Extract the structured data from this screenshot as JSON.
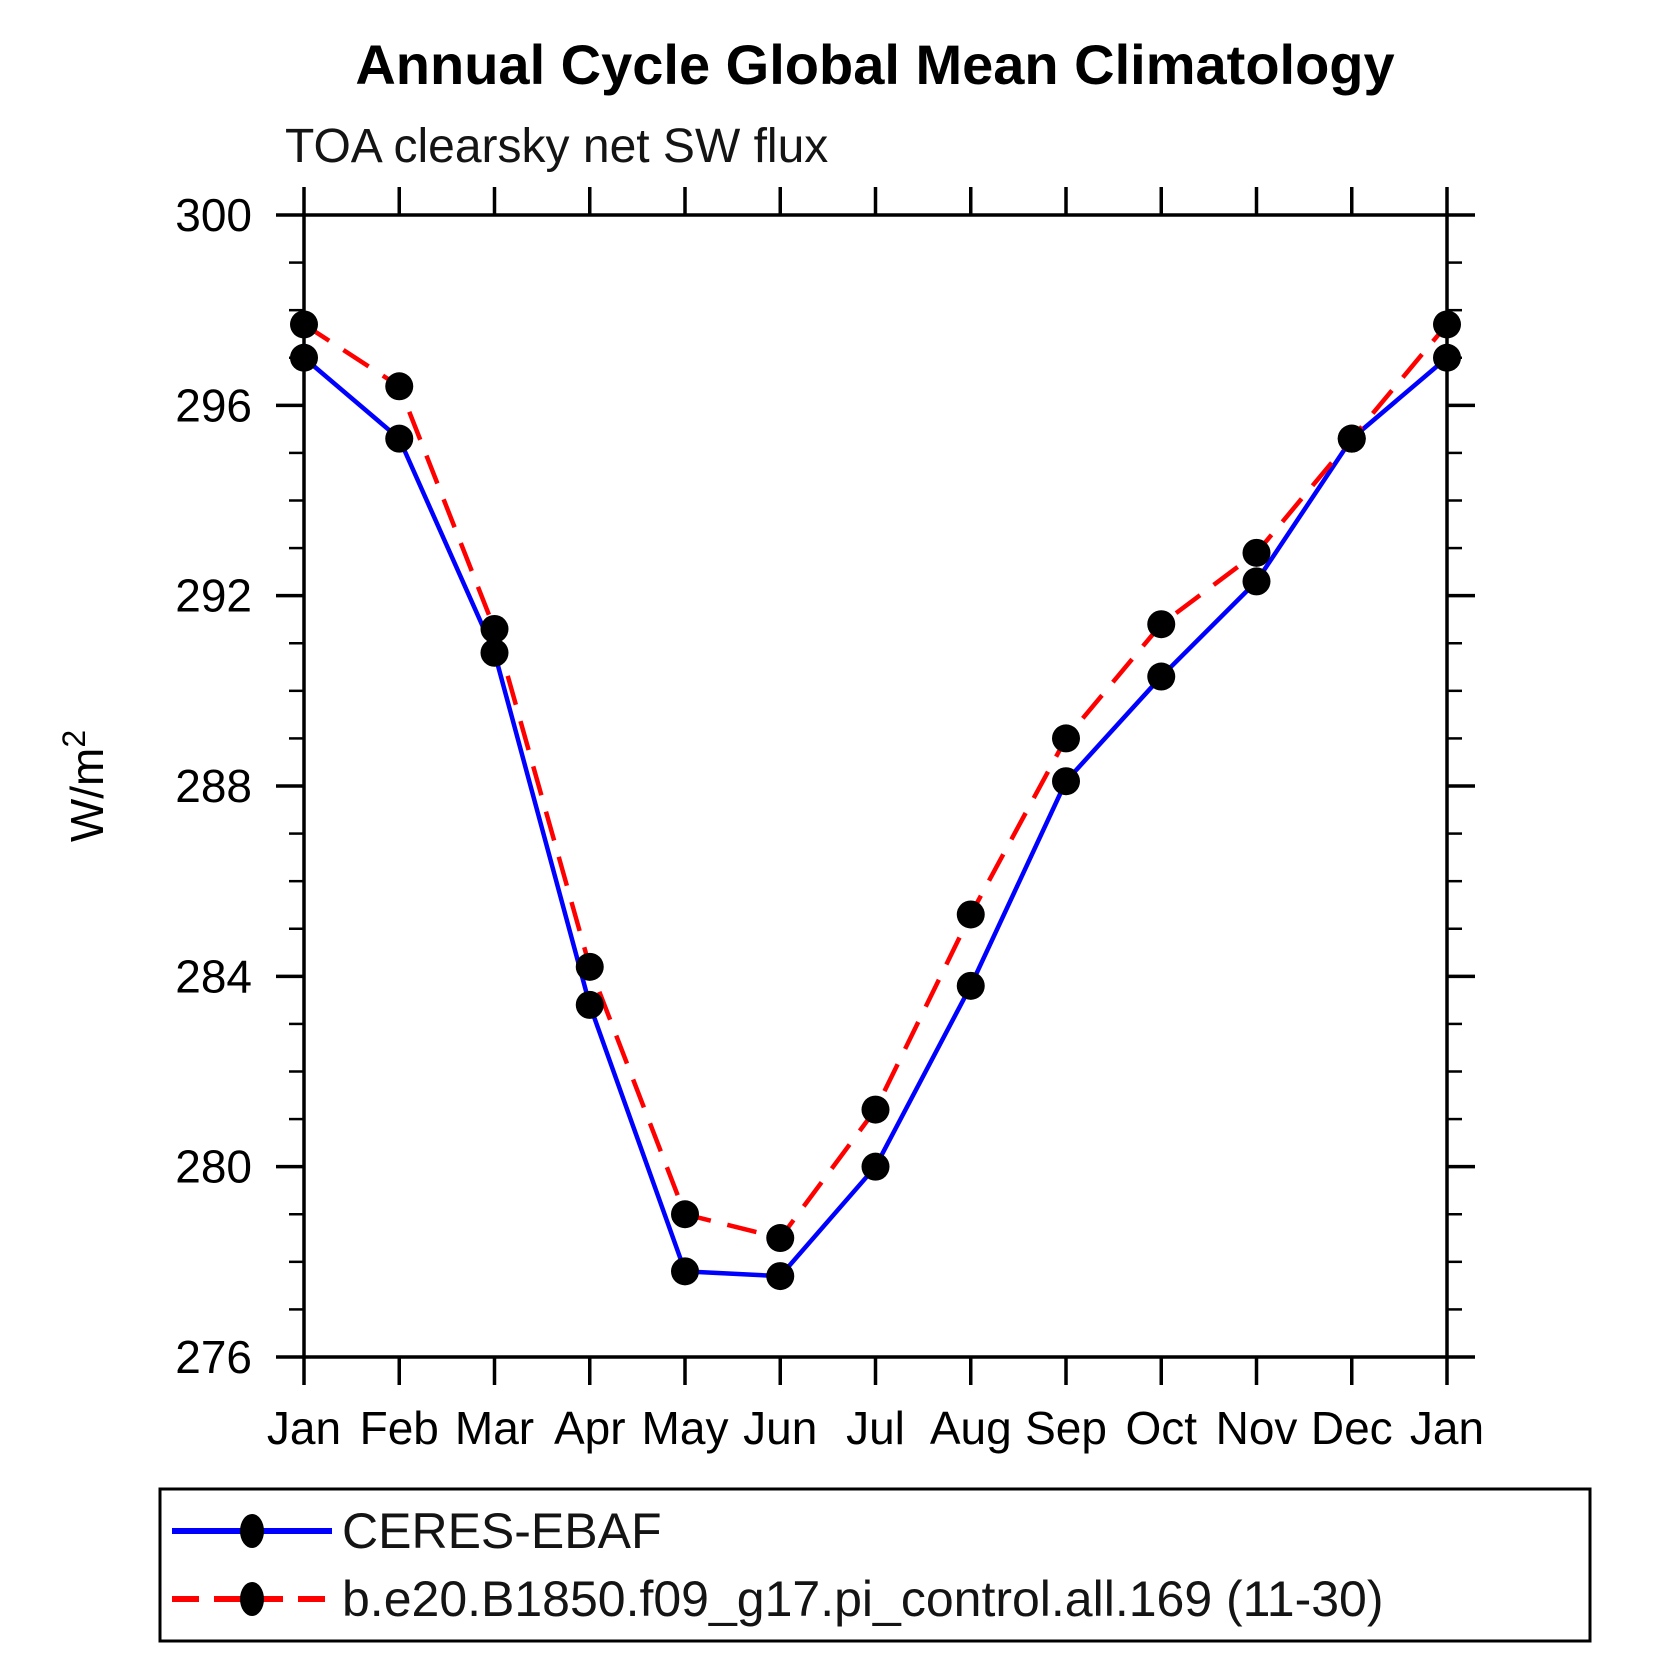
{
  "title": "Annual Cycle Global Mean Climatology",
  "subtitle": "TOA clearsky net SW flux",
  "y_axis": {
    "label": "W/m²",
    "tick_labels": [
      "300",
      "296",
      "292",
      "288",
      "284",
      "280",
      "276"
    ]
  },
  "x_axis": {
    "tick_labels": [
      "Jan",
      "Feb",
      "Mar",
      "Apr",
      "May",
      "Jun",
      "Jul",
      "Aug",
      "Sep",
      "Oct",
      "Nov",
      "Dec",
      "Jan"
    ]
  },
  "legend": {
    "entries": [
      {
        "label": "CERES-EBAF",
        "color": "#0000ff",
        "line_style": "solid",
        "marker_color": "#000000"
      },
      {
        "label": "b.e20.B1850.f09_g17.pi_control.all.169 (11-30)",
        "color": "#ff0000",
        "line_style": "dashed",
        "marker_color": "#000000"
      }
    ]
  },
  "chart_data": {
    "type": "line",
    "title": "Annual Cycle Global Mean Climatology",
    "subtitle": "TOA clearsky net SW flux",
    "ylabel": "W/m²",
    "xlabel": "",
    "x": [
      "Jan",
      "Feb",
      "Mar",
      "Apr",
      "May",
      "Jun",
      "Jul",
      "Aug",
      "Sep",
      "Oct",
      "Nov",
      "Dec",
      "Jan"
    ],
    "ylim": [
      276,
      300
    ],
    "y_major_step": 4,
    "y_minor_step": 1,
    "grid": false,
    "legend_position": "bottom",
    "series": [
      {
        "name": "CERES-EBAF",
        "color": "#0000ff",
        "line": "solid",
        "marker": "circle",
        "marker_color": "#000000",
        "values": [
          297.0,
          295.3,
          290.8,
          283.4,
          277.8,
          277.7,
          280.0,
          283.8,
          288.1,
          290.3,
          292.3,
          295.3,
          297.0
        ]
      },
      {
        "name": "b.e20.B1850.f09_g17.pi_control.all.169 (11-30)",
        "color": "#ff0000",
        "line": "dashed",
        "marker": "circle",
        "marker_color": "#000000",
        "values": [
          297.7,
          296.4,
          291.3,
          284.2,
          279.0,
          278.5,
          281.2,
          285.3,
          289.0,
          291.4,
          292.9,
          295.3,
          297.7
        ]
      }
    ]
  }
}
